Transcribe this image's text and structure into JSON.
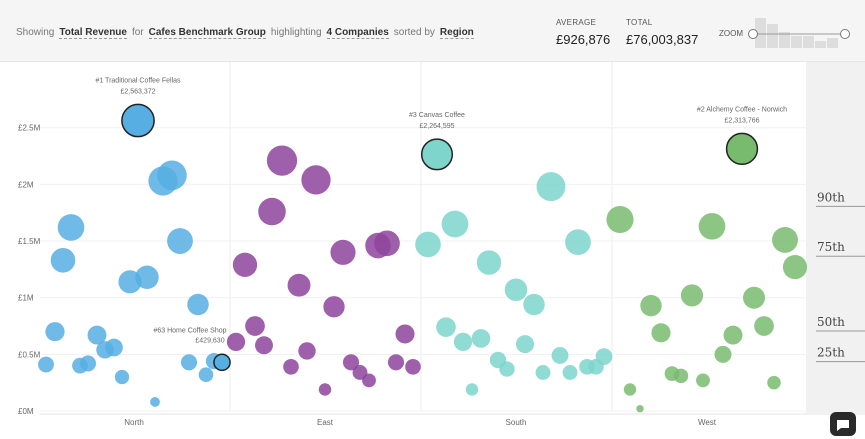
{
  "header": {
    "parts": [
      "Showing",
      "Total Revenue",
      "for",
      "Cafes Benchmark Group",
      "highlighting",
      "4 Companies",
      "sorted by",
      "Region"
    ]
  },
  "stats": [
    {
      "label": "AVERAGE",
      "value": "£926,876"
    },
    {
      "label": "TOTAL",
      "value": "£76,003,837"
    }
  ],
  "zoom_label": "ZOOM",
  "chart_data": {
    "type": "bubble-strip",
    "categories": [
      "North",
      "East",
      "South",
      "West"
    ],
    "ylim": [
      0,
      3080000
    ],
    "yticks": [
      {
        "value": 0,
        "label": "£0M"
      },
      {
        "value": 500000,
        "label": "£0.5M"
      },
      {
        "value": 1000000,
        "label": "£1M"
      },
      {
        "value": 1500000,
        "label": "£1.5M"
      },
      {
        "value": 2000000,
        "label": "£2M"
      },
      {
        "value": 2500000,
        "label": "£2.5M"
      }
    ],
    "grid": true,
    "series": [
      {
        "name": "North",
        "color": "#56aee2",
        "values": [
          700000,
          410000,
          400000,
          420000,
          670000,
          540000,
          560000,
          300000,
          80000,
          1330000,
          1620000,
          1140000,
          1180000,
          2030000,
          2080000,
          1500000,
          940000,
          430000,
          320000,
          440000
        ],
        "highlights": [
          {
            "label": "#1 Traditional Coffee Fellas",
            "value": 2563372,
            "value_label": "£2,563,372"
          },
          {
            "label": "#63 Home Coffee Shop",
            "value": 429630,
            "value_label": "£429,630"
          }
        ]
      },
      {
        "name": "East",
        "color": "#8e449c",
        "values": [
          2210000,
          2040000,
          1760000,
          1290000,
          1110000,
          1400000,
          1460000,
          1480000,
          920000,
          750000,
          580000,
          610000,
          530000,
          390000,
          190000,
          430000,
          340000,
          270000,
          430000,
          680000,
          390000
        ],
        "highlights": []
      },
      {
        "name": "South",
        "color": "#7dd5cb",
        "values": [
          1980000,
          1650000,
          1470000,
          1490000,
          1310000,
          1070000,
          940000,
          740000,
          610000,
          640000,
          590000,
          450000,
          370000,
          340000,
          490000,
          340000,
          390000,
          390000,
          480000,
          190000
        ],
        "highlights": [
          {
            "label": "#3 Canvas Coffee",
            "value": 2264595,
            "value_label": "£2,264,595"
          }
        ]
      },
      {
        "name": "West",
        "color": "#79bb6e",
        "values": [
          1690000,
          1630000,
          1510000,
          1270000,
          1020000,
          1000000,
          930000,
          690000,
          750000,
          670000,
          500000,
          330000,
          310000,
          270000,
          250000,
          190000,
          20000
        ],
        "highlights": [
          {
            "label": "#2 Alchemy Coffee - Norwich",
            "value": 2313766,
            "value_label": "£2,313,766"
          }
        ]
      }
    ],
    "percentiles": [
      {
        "label": "90th",
        "value": 1850000
      },
      {
        "label": "75th",
        "value": 1410000
      },
      {
        "label": "50th",
        "value": 750000
      },
      {
        "label": "25th",
        "value": 480000
      }
    ]
  }
}
